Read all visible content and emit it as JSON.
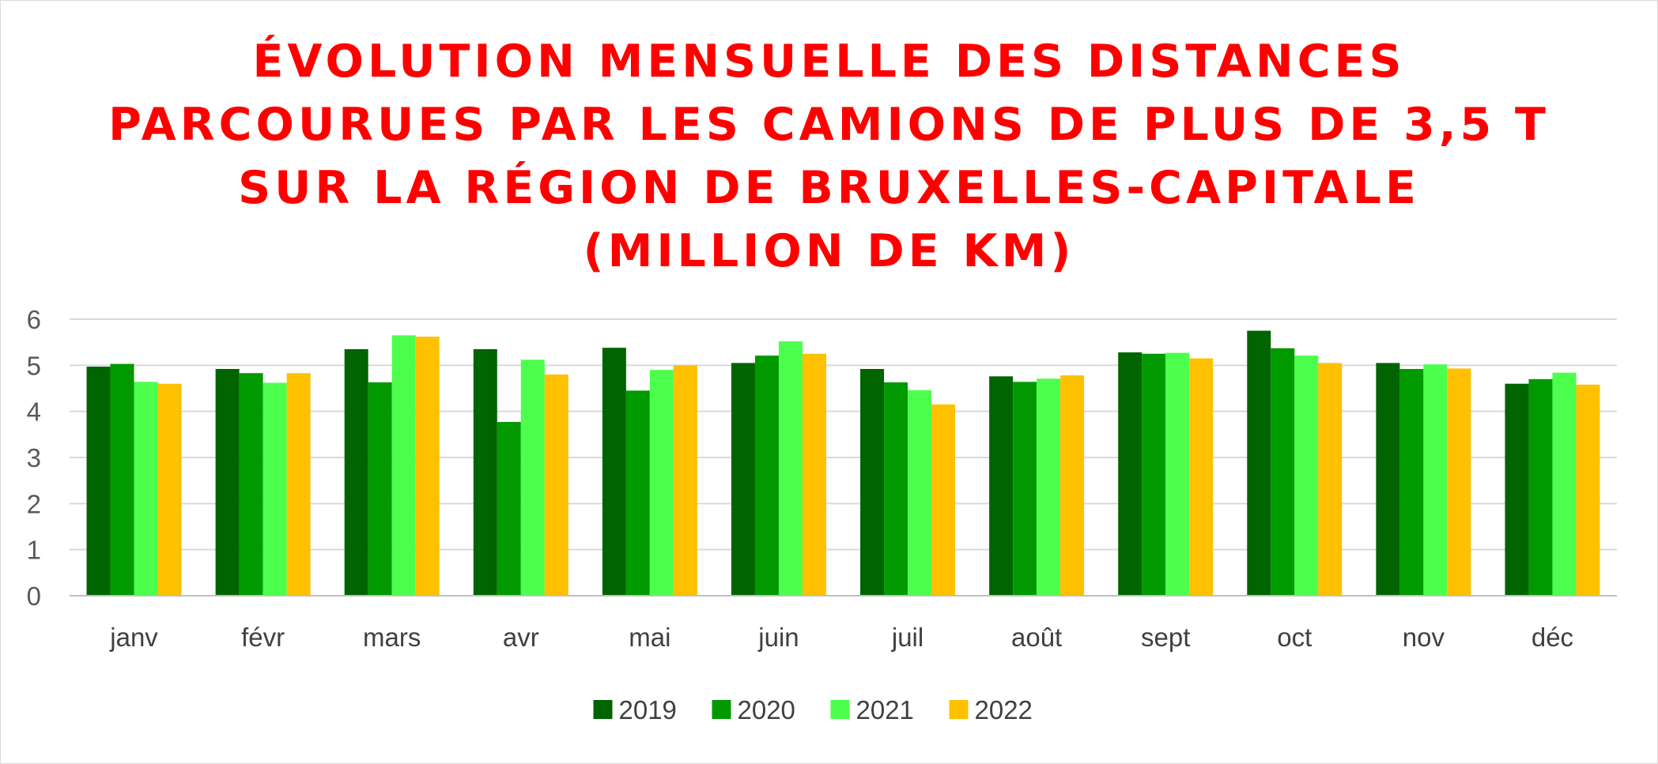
{
  "chart_data": {
    "type": "bar",
    "title": [
      "ÉVOLUTION MENSUELLE DES DISTANCES",
      "PARCOURUES PAR LES CAMIONS DE PLUS DE 3,5 T",
      "SUR LA RÉGION DE BRUXELLES-CAPITALE",
      "(MILLION DE KM)"
    ],
    "xlabel": "",
    "ylabel": "",
    "ylim": [
      0,
      6
    ],
    "yticks": [
      0,
      1,
      2,
      3,
      4,
      5,
      6
    ],
    "grid": true,
    "legend_position": "bottom",
    "categories": [
      "janv",
      "févr",
      "mars",
      "avr",
      "mai",
      "juin",
      "juil",
      "août",
      "sept",
      "oct",
      "nov",
      "déc"
    ],
    "series": [
      {
        "name": "2019",
        "color": "#006400",
        "values": [
          4.97,
          4.92,
          5.35,
          5.35,
          5.38,
          5.05,
          4.92,
          4.76,
          5.28,
          5.75,
          5.05,
          4.6
        ]
      },
      {
        "name": "2020",
        "color": "#009900",
        "values": [
          5.03,
          4.83,
          4.63,
          3.77,
          4.45,
          5.21,
          4.63,
          4.64,
          5.25,
          5.37,
          4.92,
          4.7
        ]
      },
      {
        "name": "2021",
        "color": "#4cff4c",
        "values": [
          4.64,
          4.62,
          5.65,
          5.12,
          4.9,
          5.52,
          4.46,
          4.71,
          5.27,
          5.21,
          5.02,
          4.84
        ]
      },
      {
        "name": "2022",
        "color": "#ffc000",
        "values": [
          4.6,
          4.83,
          5.62,
          4.8,
          5.0,
          5.25,
          4.15,
          4.78,
          5.15,
          5.05,
          4.93,
          4.58
        ]
      }
    ]
  }
}
